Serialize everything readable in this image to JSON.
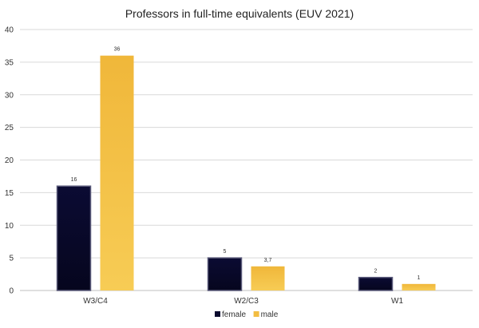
{
  "chart_data": {
    "type": "bar",
    "title": "Professors in full-time equivalents (EUV 2021)",
    "xlabel": "",
    "ylabel": "",
    "categories": [
      "W3/C4",
      "W2/C3",
      "W1"
    ],
    "series": [
      {
        "name": "female",
        "values": [
          16,
          5,
          2
        ],
        "labels": [
          "16",
          "5",
          "2"
        ],
        "color": "#0a0a2e"
      },
      {
        "name": "male",
        "values": [
          36,
          3.7,
          1
        ],
        "labels": [
          "36",
          "3,7",
          "1"
        ],
        "color": "#f2bd42"
      }
    ],
    "ylim": [
      0,
      40
    ],
    "yticks": [
      0,
      5,
      10,
      15,
      20,
      25,
      30,
      35,
      40
    ],
    "grid": true,
    "legend_position": "bottom-center"
  }
}
